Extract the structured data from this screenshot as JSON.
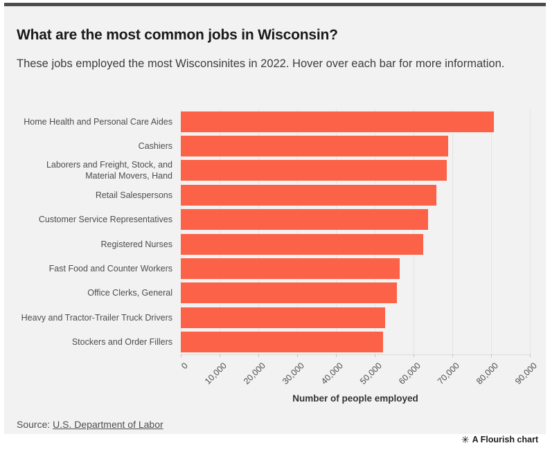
{
  "card": {
    "title": "What are the most common jobs in Wisconsin?",
    "subtitle": "These jobs employed the most Wisconsinites in 2022. Hover over each bar for more information.",
    "source_prefix": "Source: ",
    "source_link_text": "U.S. Department of Labor"
  },
  "footer": {
    "flourish_icon": "✳",
    "flourish_label": "A Flourish chart"
  },
  "colors": {
    "bar": "#fc6247",
    "card_background": "#f2f2f2",
    "top_border": "#4d4d4d",
    "gridline": "#e4e4e4"
  },
  "chart_data": {
    "type": "bar",
    "orientation": "horizontal",
    "title": "What are the most common jobs in Wisconsin?",
    "subtitle": "These jobs employed the most Wisconsinites in 2022. Hover over each bar for more information.",
    "categories": [
      "Home Health and Personal Care Aides",
      "Cashiers",
      "Laborers and Freight, Stock, and Material Movers, Hand",
      "Retail Salespersons",
      "Customer Service Representatives",
      "Registered Nurses",
      "Fast Food and Counter Workers",
      "Office Clerks, General",
      "Heavy and Tractor-Trailer Truck Drivers",
      "Stockers and Order Fillers"
    ],
    "values": [
      80800,
      69000,
      68600,
      65900,
      63800,
      62500,
      56500,
      55700,
      52600,
      52200
    ],
    "xlabel": "Number of people employed",
    "ylabel": "",
    "xlim": [
      0,
      90000
    ],
    "xticks": [
      0,
      10000,
      20000,
      30000,
      40000,
      50000,
      60000,
      70000,
      80000,
      90000
    ],
    "xtick_labels": [
      "0",
      "10,000",
      "20,000",
      "30,000",
      "40,000",
      "50,000",
      "60,000",
      "70,000",
      "80,000",
      "90,000"
    ],
    "grid": true,
    "legend": false
  }
}
